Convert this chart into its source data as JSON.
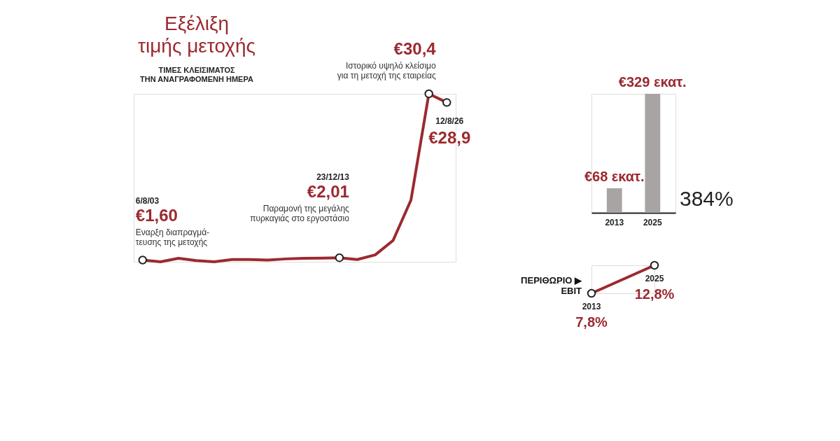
{
  "chart_data": [
    {
      "type": "line",
      "title": "Εξέλιξη τιμής μετοχής",
      "subtitle": "ΤΙΜΕΣ ΚΛΕΙΣΙΜΑΤΟΣ ΤΗΝ ΑΝΑΓΡΑΦΟΜΕΝΗ ΗΜΕΡΑ",
      "categories": [
        null,
        null,
        null,
        null,
        null,
        null,
        null,
        null,
        null,
        null,
        null,
        null,
        null,
        null,
        null,
        null,
        null,
        null
      ],
      "series": [
        {
          "color": "#9b2a30",
          "values": [
            1.6,
            1.3,
            1.9,
            1.5,
            1.3,
            1.7,
            1.7,
            1.6,
            1.8,
            1.9,
            1.95,
            2.01,
            1.7,
            2.5,
            5,
            12,
            30.4,
            28.9
          ],
          "value_labels": [
            "€1,60",
            null,
            null,
            null,
            null,
            null,
            null,
            null,
            null,
            null,
            null,
            "€2,01",
            null,
            null,
            null,
            null,
            "€30,4",
            "€28,9"
          ]
        }
      ],
      "annotations": [
        "6/8/03",
        "Εναρξη διαπραγμά-\nτευσης της μετοχής",
        "23/12/13",
        "Παραμονή της μεγάλης\nπυρκαγιάς στο εργοστάσιο",
        "Ιστορικό υψηλό κλείσιμο\nγια τη μετοχή της εταιρείας",
        "12/8/26"
      ]
    },
    {
      "type": "bar",
      "categories": [
        "2013",
        "2025"
      ],
      "values": [
        68,
        329
      ],
      "color": "#a9a4a4",
      "value_labels": [
        "€68 εκατ.",
        "€329 εκατ."
      ],
      "annotations": [
        "384%"
      ],
      "tick_labels": "x"
    },
    {
      "type": "line",
      "title": "ΠΕΡΙΘΩΡΙΟ ▶\nEBIT",
      "categories": [
        "2013",
        "2025"
      ],
      "series": [
        {
          "color": "#9b2a30",
          "values": [
            7.8,
            12.8
          ],
          "value_labels": [
            "7,8%",
            "12,8%"
          ]
        }
      ],
      "marker": "circle"
    }
  ]
}
